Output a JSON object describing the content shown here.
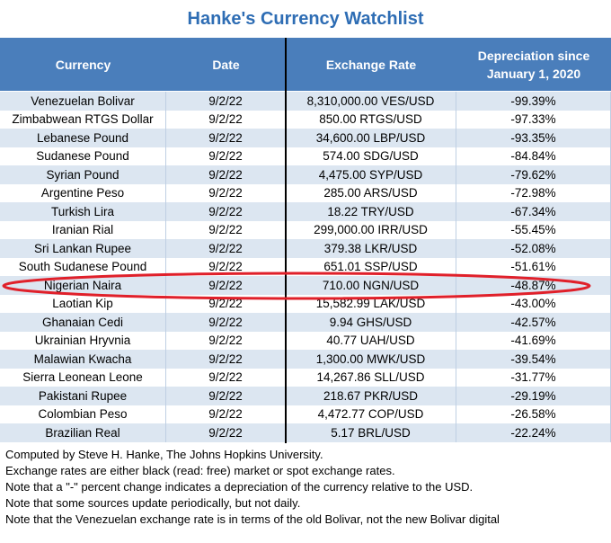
{
  "title": "Hanke's Currency Watchlist",
  "table": {
    "header": [
      "Currency",
      "Date",
      "Exchange Rate",
      "Depreciation since January 1, 2020"
    ],
    "rows": [
      [
        "Venezuelan Bolivar",
        "9/2/22",
        "8,310,000.00 VES/USD",
        "-99.39%"
      ],
      [
        "Zimbabwean RTGS Dollar",
        "9/2/22",
        "850.00 RTGS/USD",
        "-97.33%"
      ],
      [
        "Lebanese Pound",
        "9/2/22",
        "34,600.00 LBP/USD",
        "-93.35%"
      ],
      [
        "Sudanese Pound",
        "9/2/22",
        "574.00 SDG/USD",
        "-84.84%"
      ],
      [
        "Syrian Pound",
        "9/2/22",
        "4,475.00 SYP/USD",
        "-79.62%"
      ],
      [
        "Argentine Peso",
        "9/2/22",
        "285.00 ARS/USD",
        "-72.98%"
      ],
      [
        "Turkish Lira",
        "9/2/22",
        "18.22 TRY/USD",
        "-67.34%"
      ],
      [
        "Iranian Rial",
        "9/2/22",
        "299,000.00 IRR/USD",
        "-55.45%"
      ],
      [
        "Sri Lankan Rupee",
        "9/2/22",
        "379.38 LKR/USD",
        "-52.08%"
      ],
      [
        "South Sudanese Pound",
        "9/2/22",
        "651.01 SSP/USD",
        "-51.61%"
      ],
      [
        "Nigerian Naira",
        "9/2/22",
        "710.00 NGN/USD",
        "-48.87%"
      ],
      [
        "Laotian Kip",
        "9/2/22",
        "15,582.99 LAK/USD",
        "-43.00%"
      ],
      [
        "Ghanaian Cedi",
        "9/2/22",
        "9.94 GHS/USD",
        "-42.57%"
      ],
      [
        "Ukrainian Hryvnia",
        "9/2/22",
        "40.77 UAH/USD",
        "-41.69%"
      ],
      [
        "Malawian Kwacha",
        "9/2/22",
        "1,300.00 MWK/USD",
        "-39.54%"
      ],
      [
        "Sierra Leonean Leone",
        "9/2/22",
        "14,267.86 SLL/USD",
        "-31.77%"
      ],
      [
        "Pakistani Rupee",
        "9/2/22",
        "218.67 PKR/USD",
        "-29.19%"
      ],
      [
        "Colombian Peso",
        "9/2/22",
        "4,472.77 COP/USD",
        "-26.58%"
      ],
      [
        "Brazilian Real",
        "9/2/22",
        "5.17 BRL/USD",
        "-22.24%"
      ]
    ]
  },
  "notes": [
    "Computed by Steve H. Hanke, The Johns Hopkins University.",
    "Exchange rates are either black (read: free) market or spot exchange rates.",
    "Note that a \"-\" percent change indicates a depreciation of the currency relative to the USD.",
    "Note that some sources update periodically, but not daily.",
    "Note that the Venezuelan exchange rate is in terms of the old Bolivar, not the new Bolivar digital"
  ]
}
